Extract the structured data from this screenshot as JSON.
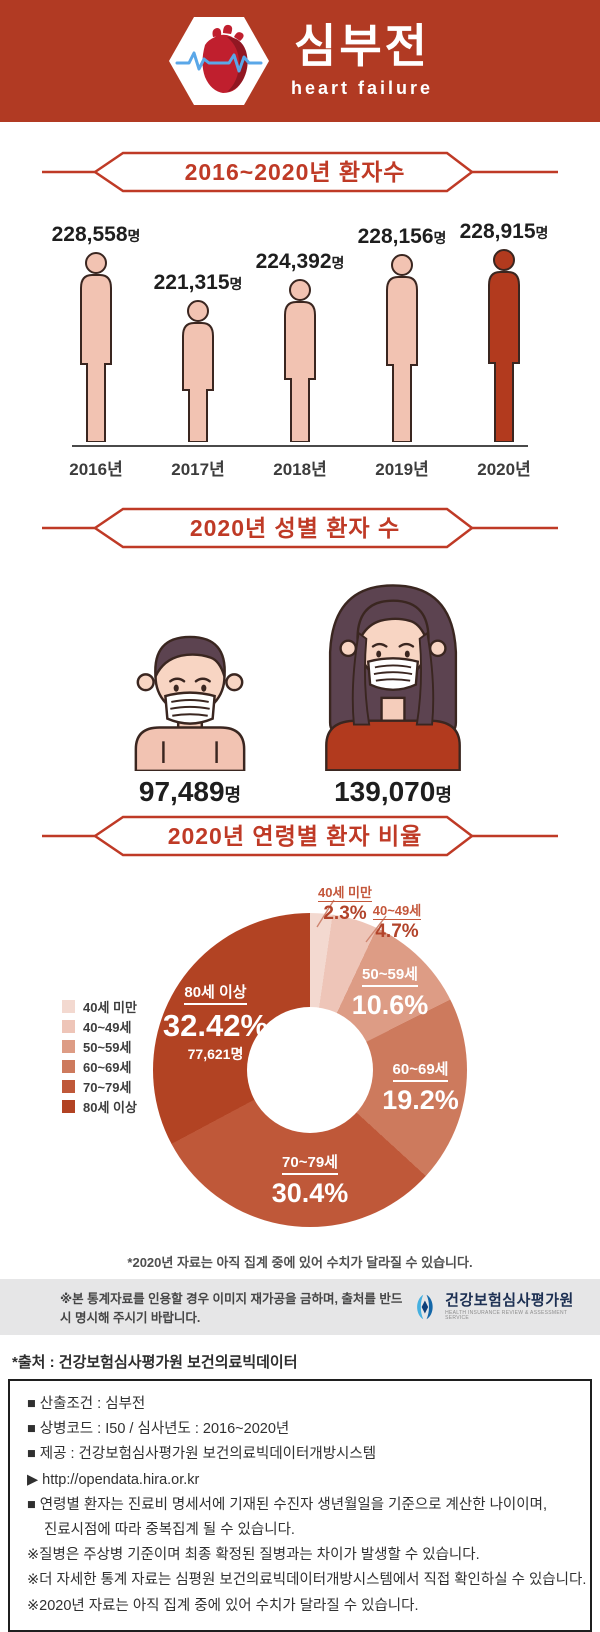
{
  "header": {
    "title": "심부전",
    "subtitle": "heart failure",
    "bg_color": "#b13a23",
    "logo_icon": "heart-ekg-icon"
  },
  "banners": {
    "yearly": "2016~2020년 환자수",
    "gender": "2020년 성별 환자 수",
    "age": "2020년 연령별 환자 비율"
  },
  "colors": {
    "brand_red": "#bf3a26",
    "header_red": "#b13a23",
    "figure_pink": "#f2c3b2",
    "figure_dark_red": "#b23a1e",
    "outline_dark": "#3a2620"
  },
  "chart_data": [
    {
      "type": "bar",
      "title": "2016~2020년 환자수",
      "categories": [
        "2016년",
        "2017년",
        "2018년",
        "2019년",
        "2020년"
      ],
      "values": [
        228558,
        221315,
        224392,
        228156,
        228915
      ],
      "value_labels": [
        "228,558",
        "221,315",
        "224,392",
        "228,156",
        "228,915"
      ],
      "unit": "명",
      "highlight_index": 4,
      "bar_color": "#f2c3b2",
      "highlight_color": "#b23a1e",
      "note": "person pictograms, truncated scale"
    },
    {
      "type": "bar",
      "title": "2020년 성별 환자 수",
      "categories": [
        "male",
        "female"
      ],
      "values": [
        97489,
        139070
      ],
      "value_labels": [
        "97,489",
        "139,070"
      ],
      "unit": "명",
      "note": "male and female masked-person pictograms"
    },
    {
      "type": "pie",
      "title": "2020년 연령별 환자 비율",
      "categories": [
        "40세 미만",
        "40~49세",
        "50~59세",
        "60~69세",
        "70~79세",
        "80세 이상"
      ],
      "values": [
        2.3,
        4.7,
        10.6,
        19.2,
        30.4,
        32.42
      ],
      "value_labels": [
        "2.3%",
        "4.7%",
        "10.6%",
        "19.2%",
        "30.4%",
        "32.42%"
      ],
      "annotation": {
        "category": "80세 이상",
        "count_label": "77,621명"
      },
      "colors": [
        "#f3d9d0",
        "#eec5b8",
        "#dd9c85",
        "#cd7a5d",
        "#bf5839",
        "#b24323"
      ],
      "donut_hole_ratio": 0.4,
      "start_angle": 0,
      "direction": "clockwise",
      "legend_position": "left"
    }
  ],
  "footnote": "*2020년 자료는 아직 집계 중에 있어 수치가 달라질 수 있습니다.",
  "citation_bar": {
    "text": "※본 통계자료를 인용할 경우 이미지 재가공을 금하며, 출처를 반드시 명시해 주시기 바랍니다.",
    "org_name": "건강보험심사평가원",
    "org_subtext": "HEALTH INSURANCE REVIEW & ASSESSMENT SERVICE"
  },
  "source_line": "*출처 : 건강보험심사평가원 보건의료빅데이터",
  "info_box": {
    "lines": [
      "■ 산출조건 : 심부전",
      "■ 상병코드 : I50 / 심사년도 : 2016~2020년",
      "■ 제공 : 건강보험심사평가원 보건의료빅데이터개방시스템",
      "▶ http://opendata.hira.or.kr",
      "■ 연령별 환자는 진료비 명세서에 기재된 수진자 생년월일을 기준으로 계산한 나이이며,",
      "진료시점에 따라 중복집계 될 수 있습니다.",
      "※질병은 주상병 기준이며 최종 확정된 질병과는 차이가 발생할 수 있습니다.",
      "※더 자세한 통계 자료는 심평원 보건의료빅데이터개방시스템에서 직접 확인하실 수 있습니다.",
      "※2020년 자료는 아직 집계 중에 있어 수치가 달라질 수 있습니다."
    ]
  }
}
